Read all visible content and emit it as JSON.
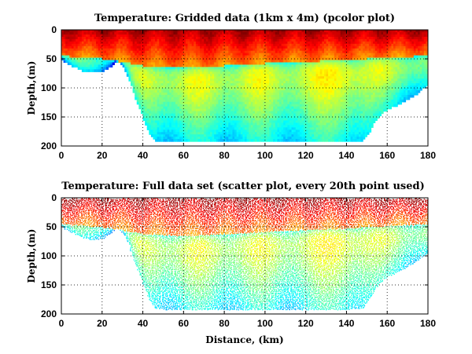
{
  "chart_data": [
    {
      "type": "heatmap",
      "title": "Temperature: Gridded data (1km x 4m) (pcolor plot)",
      "xlabel": "",
      "ylabel": "Depth,(m)",
      "xlim": [
        0,
        180
      ],
      "ylim": [
        0,
        200
      ],
      "y_reversed": true,
      "x_ticks": [
        0,
        20,
        40,
        60,
        80,
        100,
        120,
        140,
        160,
        180
      ],
      "y_ticks": [
        0,
        50,
        100,
        150,
        200
      ],
      "grid": "dotted",
      "colormap": "jet",
      "cell_size": {
        "dx_km": 1,
        "dz_m": 4
      },
      "bottom_depth_profile": {
        "x": [
          0,
          5,
          10,
          15,
          20,
          24,
          27,
          30,
          33,
          36,
          40,
          43,
          46,
          50,
          60,
          80,
          100,
          120,
          140,
          148,
          152,
          155,
          160,
          165,
          170,
          175,
          178,
          180
        ],
        "depth": [
          50,
          60,
          68,
          72,
          70,
          62,
          52,
          60,
          80,
          112,
          148,
          175,
          190,
          192,
          192,
          192,
          192,
          192,
          192,
          190,
          170,
          150,
          135,
          128,
          118,
          108,
          98,
          95
        ]
      },
      "warm_layer_depth": {
        "x": [
          0,
          20,
          30,
          40,
          60,
          80,
          100,
          120,
          140,
          160,
          180
        ],
        "depth": [
          45,
          50,
          55,
          62,
          65,
          62,
          58,
          55,
          52,
          48,
          45
        ]
      }
    },
    {
      "type": "scatter",
      "title": "Temperature: Full data set (scatter plot, every 20th point used)",
      "xlabel": "Distance, (km)",
      "ylabel": "Depth,(m)",
      "xlim": [
        0,
        180
      ],
      "ylim": [
        0,
        200
      ],
      "y_reversed": true,
      "x_ticks": [
        0,
        20,
        40,
        60,
        80,
        100,
        120,
        140,
        160,
        180
      ],
      "y_ticks": [
        0,
        50,
        100,
        150,
        200
      ],
      "grid": "dotted",
      "colormap": "jet",
      "subsample_every": 20
    }
  ]
}
